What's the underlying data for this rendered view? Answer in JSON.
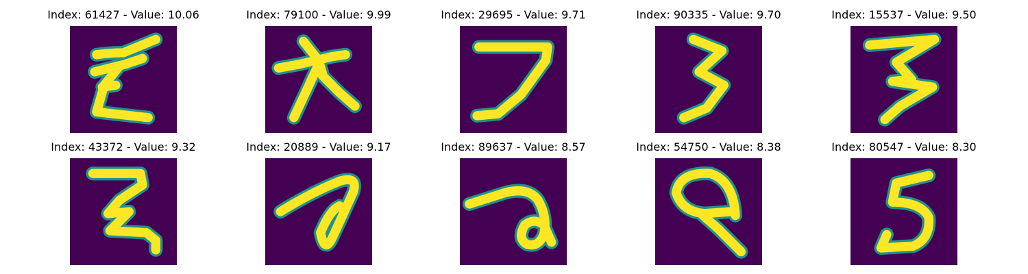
{
  "figure": {
    "colors": {
      "background": "#440154",
      "stroke": "#fde725",
      "edge": "#21918c"
    },
    "panels": [
      {
        "title": "Index: 61427 - Value: 10.06",
        "glyph": "sigma-shape"
      },
      {
        "title": "Index: 79100 - Value: 9.99",
        "glyph": "cross-shape"
      },
      {
        "title": "Index: 29695 - Value: 9.71",
        "glyph": "seven-shape"
      },
      {
        "title": "Index: 90335 - Value: 9.70",
        "glyph": "three-shape"
      },
      {
        "title": "Index: 15537 - Value: 9.50",
        "glyph": "three-shape"
      },
      {
        "title": "Index: 43372 - Value: 9.32",
        "glyph": "two-shape"
      },
      {
        "title": "Index: 20889 - Value: 9.17",
        "glyph": "loop-shape"
      },
      {
        "title": "Index: 89637 - Value: 8.57",
        "glyph": "spiral-shape"
      },
      {
        "title": "Index: 54750 - Value: 8.38",
        "glyph": "loop-shape"
      },
      {
        "title": "Index: 80547 - Value: 8.30",
        "glyph": "five-shape"
      }
    ]
  }
}
